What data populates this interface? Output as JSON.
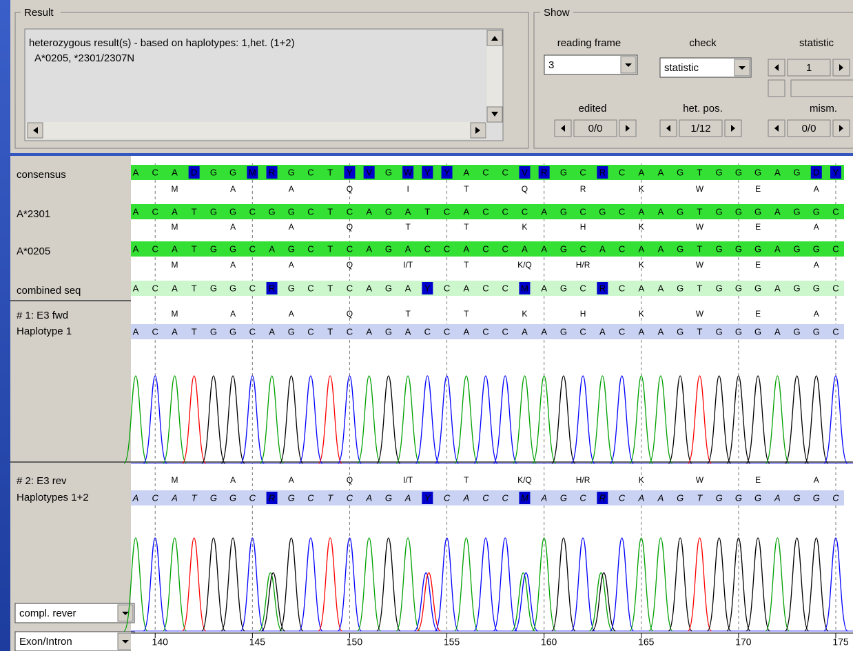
{
  "result": {
    "label": "Result",
    "lines": [
      "heterozygous result(s) - based on haplotypes:  1,het. (1+2)",
      "A*0205, *2301/2307N"
    ]
  },
  "show": {
    "label": "Show",
    "reading_frame": {
      "label": "reading frame",
      "value": "3"
    },
    "check": {
      "label": "check",
      "value": "statistic"
    },
    "statistic": {
      "label": "statistic",
      "value": "1"
    },
    "edited": {
      "label": "edited",
      "value": "0/0"
    },
    "het_pos": {
      "label": "het. pos.",
      "value": "1/12"
    },
    "mism": {
      "label": "mism.",
      "value": "0/0"
    }
  },
  "alignment": {
    "xlim": [
      139,
      175
    ],
    "xticks": [
      140,
      145,
      150,
      155,
      160,
      165,
      170,
      175
    ],
    "rows": [
      {
        "name": "consensus",
        "sequence": [
          "A",
          "C",
          "A",
          "D",
          "G",
          "G",
          "M",
          "R",
          "G",
          "C",
          "T",
          "Y",
          "V",
          "G",
          "W",
          "Y",
          "Y",
          "A",
          "C",
          "C",
          "V",
          "R",
          "G",
          "C",
          "R",
          "C",
          "A",
          "A",
          "G",
          "T",
          "G",
          "G",
          "G",
          "A",
          "G",
          "D",
          "Y"
        ],
        "amino_acids": [
          "M",
          "A",
          "A",
          "Q",
          "I",
          "T",
          "Q",
          "R",
          "K",
          "W",
          "E",
          "A"
        ]
      },
      {
        "name": "A*2301",
        "sequence": [
          "A",
          "C",
          "A",
          "T",
          "G",
          "G",
          "C",
          "G",
          "G",
          "C",
          "T",
          "C",
          "A",
          "G",
          "A",
          "T",
          "C",
          "A",
          "C",
          "C",
          "C",
          "A",
          "G",
          "C",
          "G",
          "C",
          "A",
          "A",
          "G",
          "T",
          "G",
          "G",
          "G",
          "A",
          "G",
          "G",
          "C"
        ],
        "amino_acids": [
          "M",
          "A",
          "A",
          "Q",
          "T",
          "T",
          "K",
          "H",
          "K",
          "W",
          "E",
          "A"
        ]
      },
      {
        "name": "A*0205",
        "sequence": [
          "A",
          "C",
          "A",
          "T",
          "G",
          "G",
          "C",
          "A",
          "G",
          "C",
          "T",
          "C",
          "A",
          "G",
          "A",
          "C",
          "C",
          "A",
          "C",
          "C",
          "A",
          "A",
          "G",
          "C",
          "A",
          "C",
          "A",
          "A",
          "G",
          "T",
          "G",
          "G",
          "G",
          "A",
          "G",
          "G",
          "C"
        ],
        "amino_acids": [
          "M",
          "A",
          "A",
          "Q",
          "I/T",
          "T",
          "K/Q",
          "H/R",
          "K",
          "W",
          "E",
          "A"
        ]
      },
      {
        "name": "combined seq",
        "sequence": [
          "A",
          "C",
          "A",
          "T",
          "G",
          "G",
          "C",
          "R",
          "G",
          "C",
          "T",
          "C",
          "A",
          "G",
          "A",
          "Y",
          "C",
          "A",
          "C",
          "C",
          "M",
          "A",
          "G",
          "C",
          "R",
          "C",
          "A",
          "A",
          "G",
          "T",
          "G",
          "G",
          "G",
          "A",
          "G",
          "G",
          "C"
        ]
      }
    ],
    "tracks": [
      {
        "name": "# 1: E3 fwd",
        "haplotype": "Haplotype 1",
        "amino_acids": [
          "M",
          "A",
          "A",
          "Q",
          "T",
          "T",
          "K",
          "H",
          "K",
          "W",
          "E",
          "A"
        ],
        "sequence": [
          "A",
          "C",
          "A",
          "T",
          "G",
          "G",
          "C",
          "A",
          "G",
          "C",
          "T",
          "C",
          "A",
          "G",
          "A",
          "C",
          "C",
          "A",
          "C",
          "C",
          "A",
          "A",
          "G",
          "C",
          "A",
          "C",
          "A",
          "A",
          "G",
          "T",
          "G",
          "G",
          "G",
          "A",
          "G",
          "G",
          "C"
        ]
      },
      {
        "name": "# 2: E3 rev",
        "haplotype": "Haplotypes 1+2",
        "amino_acids": [
          "M",
          "A",
          "A",
          "Q",
          "I/T",
          "T",
          "K/Q",
          "H/R",
          "K",
          "W",
          "E",
          "A"
        ],
        "sequence": [
          "A",
          "C",
          "A",
          "T",
          "G",
          "G",
          "C",
          "R",
          "G",
          "C",
          "T",
          "C",
          "A",
          "G",
          "A",
          "Y",
          "C",
          "A",
          "C",
          "C",
          "M",
          "A",
          "G",
          "C",
          "R",
          "C",
          "A",
          "A",
          "G",
          "T",
          "G",
          "G",
          "G",
          "A",
          "G",
          "G",
          "C"
        ]
      }
    ]
  },
  "controls": {
    "orientation": "compl. rever",
    "region": "Exon/Intron"
  }
}
